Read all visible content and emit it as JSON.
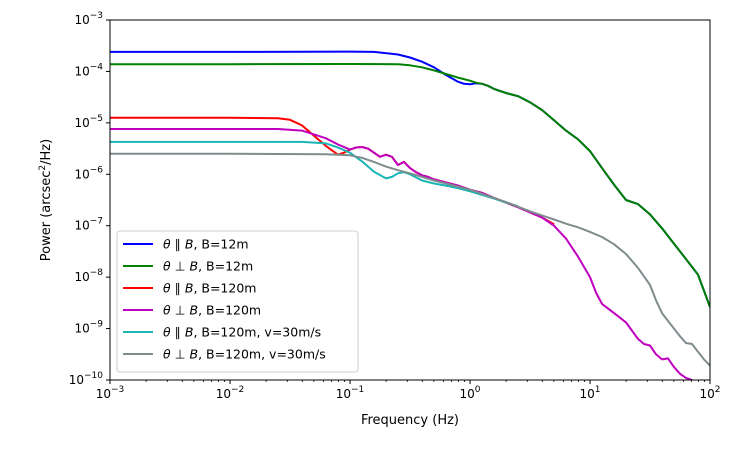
{
  "chart_data": {
    "type": "line",
    "title": "",
    "xlabel": "Frequency (Hz)",
    "ylabel_prefix": "Power (arcsec",
    "ylabel_sup": "2",
    "ylabel_suffix": "/Hz)",
    "xscale": "log",
    "yscale": "log",
    "xlim_exp": [
      -3,
      2
    ],
    "ylim_exp": [
      -10,
      -3
    ],
    "x_ticks": [
      {
        "base": "10",
        "exp": "−3",
        "value_exp": -3
      },
      {
        "base": "10",
        "exp": "−2",
        "value_exp": -2
      },
      {
        "base": "10",
        "exp": "−1",
        "value_exp": -1
      },
      {
        "base": "10",
        "exp": "0",
        "value_exp": 0
      },
      {
        "base": "10",
        "exp": "1",
        "value_exp": 1
      },
      {
        "base": "10",
        "exp": "2",
        "value_exp": 2
      }
    ],
    "y_ticks": [
      {
        "base": "10",
        "exp": "−3",
        "value_exp": -3
      },
      {
        "base": "10",
        "exp": "−4",
        "value_exp": -4
      },
      {
        "base": "10",
        "exp": "−5",
        "value_exp": -5
      },
      {
        "base": "10",
        "exp": "−6",
        "value_exp": -6
      },
      {
        "base": "10",
        "exp": "−7",
        "value_exp": -7
      },
      {
        "base": "10",
        "exp": "−8",
        "value_exp": -8
      },
      {
        "base": "10",
        "exp": "−9",
        "value_exp": -9
      },
      {
        "base": "10",
        "exp": "−10",
        "value_exp": -10
      }
    ],
    "legend_position": "lower-left",
    "series": [
      {
        "name": "θ ∥ B, B=12m",
        "label_rest": ", B=12m",
        "relation": "∥",
        "color": "#0000ff",
        "points": [
          [
            -3,
            -3.62
          ],
          [
            -2,
            -3.62
          ],
          [
            -1,
            -3.615
          ],
          [
            -0.8,
            -3.62
          ],
          [
            -0.6,
            -3.67
          ],
          [
            -0.5,
            -3.73
          ],
          [
            -0.4,
            -3.81
          ],
          [
            -0.3,
            -3.92
          ],
          [
            -0.2,
            -4.07
          ],
          [
            -0.1,
            -4.2
          ],
          [
            -0.05,
            -4.24
          ],
          [
            0,
            -4.25
          ],
          [
            0.05,
            -4.23
          ],
          [
            0.1,
            -4.24
          ],
          [
            0.15,
            -4.28
          ],
          [
            0.2,
            -4.34
          ],
          [
            0.3,
            -4.42
          ],
          [
            0.35,
            -4.45
          ],
          [
            0.4,
            -4.48
          ],
          [
            0.5,
            -4.6
          ],
          [
            0.6,
            -4.75
          ],
          [
            0.7,
            -4.95
          ],
          [
            0.8,
            -5.15
          ],
          [
            0.9,
            -5.32
          ],
          [
            1.0,
            -5.55
          ],
          [
            1.1,
            -5.88
          ],
          [
            1.2,
            -6.2
          ],
          [
            1.3,
            -6.5
          ],
          [
            1.4,
            -6.58
          ],
          [
            1.5,
            -6.78
          ],
          [
            1.6,
            -7.05
          ],
          [
            1.7,
            -7.35
          ],
          [
            1.8,
            -7.65
          ],
          [
            1.9,
            -7.95
          ],
          [
            2,
            -8.58
          ]
        ]
      },
      {
        "name": "θ ⊥ B, B=12m",
        "label_rest": ", B=12m",
        "relation": "⊥",
        "color": "#008000",
        "points": [
          [
            -3,
            -3.86
          ],
          [
            -2,
            -3.86
          ],
          [
            -1,
            -3.855
          ],
          [
            -0.6,
            -3.86
          ],
          [
            -0.5,
            -3.88
          ],
          [
            -0.4,
            -3.92
          ],
          [
            -0.3,
            -3.98
          ],
          [
            -0.2,
            -4.05
          ],
          [
            -0.1,
            -4.12
          ],
          [
            0,
            -4.18
          ],
          [
            0.05,
            -4.22
          ],
          [
            0.1,
            -4.24
          ],
          [
            0.15,
            -4.28
          ],
          [
            0.2,
            -4.34
          ],
          [
            0.3,
            -4.42
          ],
          [
            0.35,
            -4.45
          ],
          [
            0.4,
            -4.48
          ],
          [
            0.5,
            -4.6
          ],
          [
            0.6,
            -4.75
          ],
          [
            0.7,
            -4.95
          ],
          [
            0.8,
            -5.15
          ],
          [
            0.9,
            -5.32
          ],
          [
            1.0,
            -5.55
          ],
          [
            1.1,
            -5.88
          ],
          [
            1.2,
            -6.2
          ],
          [
            1.3,
            -6.5
          ],
          [
            1.4,
            -6.58
          ],
          [
            1.5,
            -6.78
          ],
          [
            1.6,
            -7.05
          ],
          [
            1.7,
            -7.35
          ],
          [
            1.8,
            -7.65
          ],
          [
            1.9,
            -7.95
          ],
          [
            2,
            -8.58
          ]
        ]
      },
      {
        "name": "θ ∥ B, B=120m",
        "label_rest": ", B=120m",
        "relation": "∥",
        "color": "#ff0000",
        "points": [
          [
            -3,
            -4.9
          ],
          [
            -2,
            -4.9
          ],
          [
            -1.6,
            -4.91
          ],
          [
            -1.5,
            -4.94
          ],
          [
            -1.4,
            -5.05
          ],
          [
            -1.3,
            -5.25
          ],
          [
            -1.2,
            -5.45
          ],
          [
            -1.1,
            -5.62
          ],
          [
            -1.05,
            -5.58
          ],
          [
            -1,
            -5.52
          ],
          [
            -0.95,
            -5.48
          ],
          [
            -0.9,
            -5.47
          ],
          [
            -0.85,
            -5.5
          ],
          [
            -0.8,
            -5.58
          ],
          [
            -0.75,
            -5.66
          ],
          [
            -0.7,
            -5.62
          ],
          [
            -0.65,
            -5.66
          ],
          [
            -0.6,
            -5.82
          ],
          [
            -0.55,
            -5.76
          ],
          [
            -0.5,
            -5.88
          ],
          [
            -0.45,
            -5.96
          ],
          [
            -0.4,
            -6.02
          ],
          [
            -0.35,
            -6.05
          ],
          [
            -0.3,
            -6.1
          ],
          [
            -0.2,
            -6.16
          ],
          [
            -0.1,
            -6.22
          ],
          [
            0,
            -6.3
          ],
          [
            0.1,
            -6.36
          ],
          [
            0.2,
            -6.46
          ],
          [
            0.3,
            -6.55
          ],
          [
            0.4,
            -6.64
          ],
          [
            0.5,
            -6.74
          ],
          [
            0.6,
            -6.84
          ],
          [
            0.7,
            -6.97
          ]
        ]
      },
      {
        "name": "θ ⊥ B, B=120m",
        "label_rest": ", B=120m",
        "relation": "⊥",
        "color": "#bf00bf",
        "points": [
          [
            -3,
            -5.12
          ],
          [
            -2,
            -5.12
          ],
          [
            -1.6,
            -5.12
          ],
          [
            -1.4,
            -5.15
          ],
          [
            -1.2,
            -5.3
          ],
          [
            -1.1,
            -5.42
          ],
          [
            -1,
            -5.52
          ],
          [
            -0.95,
            -5.48
          ],
          [
            -0.9,
            -5.47
          ],
          [
            -0.85,
            -5.5
          ],
          [
            -0.8,
            -5.58
          ],
          [
            -0.75,
            -5.66
          ],
          [
            -0.7,
            -5.62
          ],
          [
            -0.65,
            -5.66
          ],
          [
            -0.6,
            -5.82
          ],
          [
            -0.55,
            -5.76
          ],
          [
            -0.5,
            -5.88
          ],
          [
            -0.45,
            -5.96
          ],
          [
            -0.4,
            -6.02
          ],
          [
            -0.35,
            -6.05
          ],
          [
            -0.3,
            -6.1
          ],
          [
            -0.2,
            -6.16
          ],
          [
            -0.1,
            -6.22
          ],
          [
            0,
            -6.3
          ],
          [
            0.1,
            -6.36
          ],
          [
            0.2,
            -6.46
          ],
          [
            0.3,
            -6.55
          ],
          [
            0.4,
            -6.64
          ],
          [
            0.5,
            -6.74
          ],
          [
            0.6,
            -6.84
          ],
          [
            0.7,
            -7.0
          ],
          [
            0.8,
            -7.25
          ],
          [
            0.9,
            -7.6
          ],
          [
            1.0,
            -8.0
          ],
          [
            1.05,
            -8.3
          ],
          [
            1.1,
            -8.52
          ],
          [
            1.2,
            -8.7
          ],
          [
            1.3,
            -8.88
          ],
          [
            1.4,
            -9.2
          ],
          [
            1.45,
            -9.3
          ],
          [
            1.5,
            -9.33
          ],
          [
            1.55,
            -9.5
          ],
          [
            1.6,
            -9.6
          ],
          [
            1.65,
            -9.58
          ],
          [
            1.7,
            -9.75
          ],
          [
            1.75,
            -9.88
          ],
          [
            1.8,
            -9.96
          ],
          [
            1.85,
            -10.0
          ]
        ]
      },
      {
        "name": "θ ∥ B, B=120m, v=30m/s",
        "label_rest": ", B=120m, v=30m/s",
        "relation": "∥",
        "color": "#1ab5b5",
        "points": [
          [
            -3,
            -5.37
          ],
          [
            -2,
            -5.37
          ],
          [
            -1.4,
            -5.37
          ],
          [
            -1.2,
            -5.4
          ],
          [
            -1.1,
            -5.48
          ],
          [
            -1,
            -5.58
          ],
          [
            -0.9,
            -5.75
          ],
          [
            -0.8,
            -5.95
          ],
          [
            -0.7,
            -6.08
          ],
          [
            -0.65,
            -6.05
          ],
          [
            -0.6,
            -5.98
          ],
          [
            -0.55,
            -5.96
          ],
          [
            -0.5,
            -6.0
          ],
          [
            -0.45,
            -6.06
          ],
          [
            -0.4,
            -6.12
          ],
          [
            -0.3,
            -6.18
          ],
          [
            -0.2,
            -6.22
          ],
          [
            -0.1,
            -6.27
          ],
          [
            0,
            -6.33
          ],
          [
            0.1,
            -6.4
          ],
          [
            0.2,
            -6.47
          ],
          [
            0.3,
            -6.55
          ],
          [
            0.4,
            -6.62
          ]
        ]
      },
      {
        "name": "θ ⊥ B, B=120m, v=30m/s",
        "label_rest": ", B=120m, v=30m/s",
        "relation": "⊥",
        "color": "#7f8c8d",
        "points": [
          [
            -3,
            -5.6
          ],
          [
            -2,
            -5.6
          ],
          [
            -1.2,
            -5.61
          ],
          [
            -1.0,
            -5.63
          ],
          [
            -0.9,
            -5.68
          ],
          [
            -0.8,
            -5.76
          ],
          [
            -0.7,
            -5.85
          ],
          [
            -0.6,
            -5.92
          ],
          [
            -0.5,
            -5.98
          ],
          [
            -0.4,
            -6.05
          ],
          [
            -0.3,
            -6.12
          ],
          [
            -0.2,
            -6.18
          ],
          [
            -0.1,
            -6.24
          ],
          [
            0,
            -6.3
          ],
          [
            0.1,
            -6.38
          ],
          [
            0.2,
            -6.46
          ],
          [
            0.3,
            -6.54
          ],
          [
            0.4,
            -6.63
          ],
          [
            0.5,
            -6.72
          ],
          [
            0.6,
            -6.8
          ],
          [
            0.7,
            -6.88
          ],
          [
            0.8,
            -6.96
          ],
          [
            0.9,
            -7.03
          ],
          [
            1.0,
            -7.12
          ],
          [
            1.1,
            -7.22
          ],
          [
            1.2,
            -7.36
          ],
          [
            1.3,
            -7.55
          ],
          [
            1.4,
            -7.82
          ],
          [
            1.5,
            -8.15
          ],
          [
            1.55,
            -8.45
          ],
          [
            1.6,
            -8.7
          ],
          [
            1.65,
            -8.85
          ],
          [
            1.7,
            -9.0
          ],
          [
            1.75,
            -9.15
          ],
          [
            1.8,
            -9.28
          ],
          [
            1.85,
            -9.3
          ],
          [
            1.9,
            -9.45
          ],
          [
            1.95,
            -9.6
          ],
          [
            2,
            -9.72
          ]
        ]
      }
    ]
  }
}
